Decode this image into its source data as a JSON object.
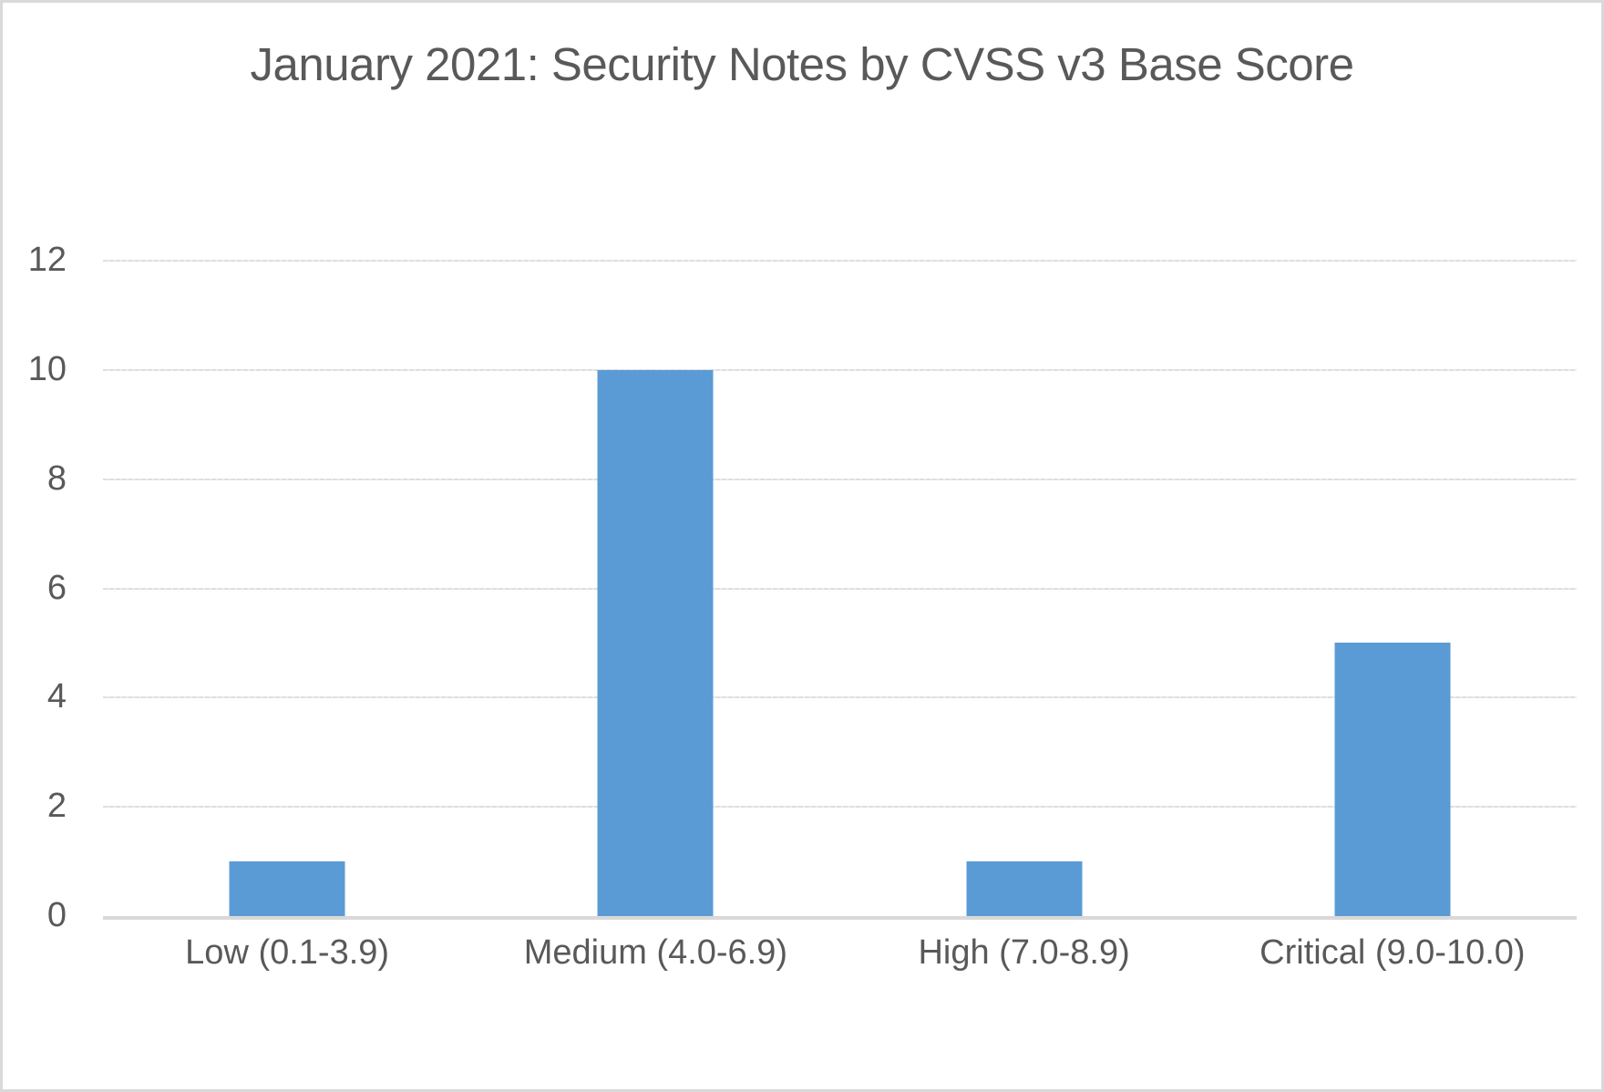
{
  "chart_data": {
    "type": "bar",
    "title": "January 2021: Security Notes by CVSS v3 Base Score",
    "categories": [
      "Low (0.1-3.9)",
      "Medium (4.0-6.9)",
      "High (7.0-8.9)",
      "Critical (9.0-10.0)"
    ],
    "values": [
      1,
      10,
      1,
      5
    ],
    "yticks": [
      0,
      2,
      4,
      6,
      8,
      10,
      12
    ],
    "ylim": [
      0,
      12
    ],
    "xlabel": "",
    "ylabel": "",
    "legend": "none",
    "grid": "horizontal",
    "colors": {
      "bar_fill": "#5B9BD5",
      "title_text": "#595959",
      "tick_text": "#595959",
      "gridline": "#DEDEDE",
      "axis_line": "#D9D9D9",
      "frame_border": "#D9D9D9",
      "background": "#FFFFFF"
    }
  }
}
